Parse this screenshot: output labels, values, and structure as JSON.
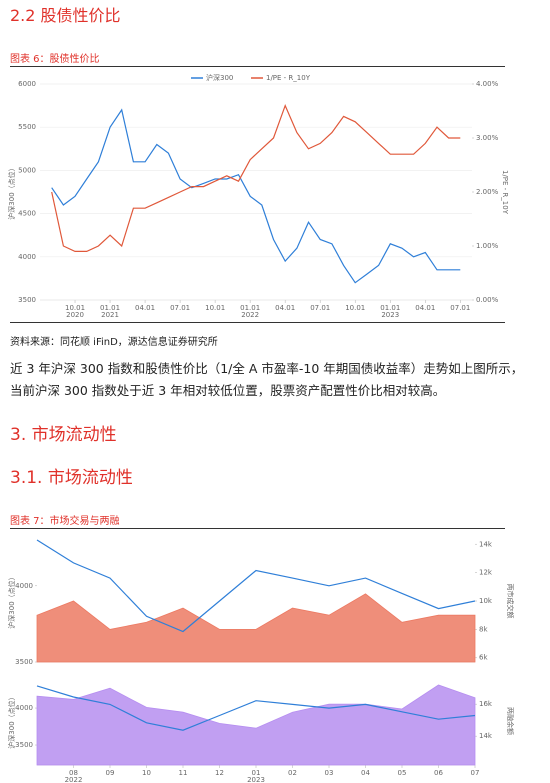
{
  "section_title": "2.2 股债性价比",
  "figure6_caption": "图表 6：股债性价比",
  "source": "资料来源：同花顺 iFinD，源达信息证券研究所",
  "paragraph": "近 3 年沪深 300 指数和股债性价比（1/全 A 市盈率-10 年期国债收益率）走势如上图所示，当前沪深 300 指数处于近 3 年相对较低位置，股票资产配置性价比相对较高。",
  "heading3": "3. 市场流动性",
  "heading31": "3.1. 市场流动性",
  "figure7_caption": "图表 7：市场交易与两融",
  "chart_data": [
    {
      "type": "line",
      "grid": true,
      "legend_position": "top",
      "xlim": [
        "2020-07",
        "2023-08"
      ],
      "xticks": [
        {
          "value": "2020-10",
          "label": "10.01"
        },
        {
          "value": "2021-01",
          "label": "01.01"
        },
        {
          "value": "2021-04",
          "label": "04.01"
        },
        {
          "value": "2021-07",
          "label": "07.01"
        },
        {
          "value": "2021-10",
          "label": "10.01"
        },
        {
          "value": "2022-01",
          "label": "01.01"
        },
        {
          "value": "2022-04",
          "label": "04.01"
        },
        {
          "value": "2022-07",
          "label": "07.01"
        },
        {
          "value": "2022-10",
          "label": "10.01"
        },
        {
          "value": "2023-01",
          "label": "01.01"
        },
        {
          "value": "2023-04",
          "label": "04.01"
        },
        {
          "value": "2023-07",
          "label": "07.01"
        }
      ],
      "xtick_years": [
        {
          "value": "2020-10",
          "label": "2020"
        },
        {
          "value": "2021-01",
          "label": "2021"
        },
        {
          "value": "2022-01",
          "label": "2022"
        },
        {
          "value": "2023-01",
          "label": "2023"
        }
      ],
      "ylabel": "沪深300（点位）",
      "y2label": "1/PE - R_10Y",
      "ylim": [
        3500,
        6000
      ],
      "yticks": [
        3500,
        4000,
        4500,
        5000,
        5500,
        6000
      ],
      "y2lim": [
        0,
        4
      ],
      "y2ticks": [
        {
          "value": 0,
          "label": "0.00%"
        },
        {
          "value": 1,
          "label": "1.00%"
        },
        {
          "value": 2,
          "label": "2.00%"
        },
        {
          "value": 3,
          "label": "3.00%"
        },
        {
          "value": 4,
          "label": "4.00%"
        }
      ],
      "x": [
        "2020-08",
        "2020-09",
        "2020-10",
        "2020-11",
        "2020-12",
        "2021-01",
        "2021-02",
        "2021-03",
        "2021-04",
        "2021-05",
        "2021-06",
        "2021-07",
        "2021-08",
        "2021-09",
        "2021-10",
        "2021-11",
        "2021-12",
        "2022-01",
        "2022-02",
        "2022-03",
        "2022-04",
        "2022-05",
        "2022-06",
        "2022-07",
        "2022-08",
        "2022-09",
        "2022-10",
        "2022-11",
        "2022-12",
        "2023-01",
        "2023-02",
        "2023-03",
        "2023-04",
        "2023-05",
        "2023-06",
        "2023-07"
      ],
      "series": [
        {
          "name": "沪深300",
          "color": "#2f7fd8",
          "values": [
            4800,
            4600,
            4700,
            4900,
            5100,
            5500,
            5700,
            5100,
            5100,
            5300,
            5200,
            4900,
            4800,
            4850,
            4900,
            4900,
            4950,
            4700,
            4600,
            4200,
            3950,
            4100,
            4400,
            4200,
            4150,
            3900,
            3700,
            3800,
            3900,
            4150,
            4100,
            4000,
            4050,
            3850,
            3850,
            3850
          ]
        },
        {
          "name": "1/PE - R_10Y",
          "color": "#e0583a",
          "axis": "y2",
          "values": [
            2.0,
            1.0,
            0.9,
            0.9,
            1.0,
            1.2,
            1.0,
            1.7,
            1.7,
            1.8,
            1.9,
            2.0,
            2.1,
            2.1,
            2.2,
            2.3,
            2.2,
            2.6,
            2.8,
            3.0,
            3.6,
            3.1,
            2.8,
            2.9,
            3.1,
            3.4,
            3.3,
            3.1,
            2.9,
            2.7,
            2.7,
            2.7,
            2.9,
            3.2,
            3.0,
            3.0
          ]
        }
      ]
    },
    {
      "type": "line",
      "xlim": [
        "2022-07",
        "2023-07"
      ],
      "ylabel": "沪深300（点位）",
      "y2label": "两市成交额",
      "ylim": [
        3500,
        4300
      ],
      "yticks": [
        3500,
        4000
      ],
      "y2lim": [
        5700,
        14300
      ],
      "y2ticks": [
        {
          "value": 6000,
          "label": "6k"
        },
        {
          "value": 8000,
          "label": "8k"
        },
        {
          "value": 10000,
          "label": "10k"
        },
        {
          "value": 12000,
          "label": "12k"
        },
        {
          "value": 14000,
          "label": "14k"
        }
      ],
      "x": [
        "2022-07",
        "2022-08",
        "2022-09",
        "2022-10",
        "2022-11",
        "2022-12",
        "2023-01",
        "2023-02",
        "2023-03",
        "2023-04",
        "2023-05",
        "2023-06",
        "2023-07"
      ],
      "series": [
        {
          "type": "area",
          "color": "#ec7a63",
          "axis": "y2",
          "values": [
            9000,
            10000,
            8000,
            8500,
            9500,
            8000,
            8000,
            9500,
            9000,
            10500,
            8500,
            9000,
            9000
          ]
        },
        {
          "type": "line",
          "color": "#2f7fd8",
          "values": [
            4300,
            4150,
            4050,
            3800,
            3700,
            3900,
            4100,
            4050,
            4000,
            4050,
            3950,
            3850,
            3900
          ]
        }
      ]
    },
    {
      "type": "line",
      "xlim": [
        "2022-07",
        "2023-07"
      ],
      "xticks": [
        {
          "value": "2022-08",
          "label": "08"
        },
        {
          "value": "2022-09",
          "label": "09"
        },
        {
          "value": "2022-10",
          "label": "10"
        },
        {
          "value": "2022-11",
          "label": "11"
        },
        {
          "value": "2022-12",
          "label": "12"
        },
        {
          "value": "2023-01",
          "label": "01"
        },
        {
          "value": "2023-02",
          "label": "02"
        },
        {
          "value": "2023-03",
          "label": "03"
        },
        {
          "value": "2023-04",
          "label": "04"
        },
        {
          "value": "2023-05",
          "label": "05"
        },
        {
          "value": "2023-06",
          "label": "06"
        },
        {
          "value": "2023-07",
          "label": "07"
        }
      ],
      "xtick_years": [
        {
          "value": "2022-08",
          "label": "2022"
        },
        {
          "value": "2023-01",
          "label": "2023"
        }
      ],
      "ylabel": "沪深300（点位）",
      "y2label": "两融余额",
      "ylim": [
        3230,
        4420
      ],
      "yticks": [
        3500,
        4000
      ],
      "y2lim": [
        12200,
        17700
      ],
      "y2ticks": [
        {
          "value": 14000,
          "label": "14k"
        },
        {
          "value": 16000,
          "label": "16k"
        }
      ],
      "x": [
        "2022-07",
        "2022-08",
        "2022-09",
        "2022-10",
        "2022-11",
        "2022-12",
        "2023-01",
        "2023-02",
        "2023-03",
        "2023-04",
        "2023-05",
        "2023-06",
        "2023-07"
      ],
      "series": [
        {
          "type": "area",
          "color": "#b68ef0",
          "axis": "y2",
          "values": [
            16500,
            16300,
            17000,
            15800,
            15500,
            14800,
            14500,
            15500,
            16000,
            16000,
            15700,
            17200,
            16400
          ]
        },
        {
          "type": "line",
          "color": "#2f7fd8",
          "values": [
            4300,
            4150,
            4050,
            3800,
            3700,
            3900,
            4100,
            4050,
            4000,
            4050,
            3950,
            3850,
            3900
          ]
        }
      ]
    }
  ]
}
